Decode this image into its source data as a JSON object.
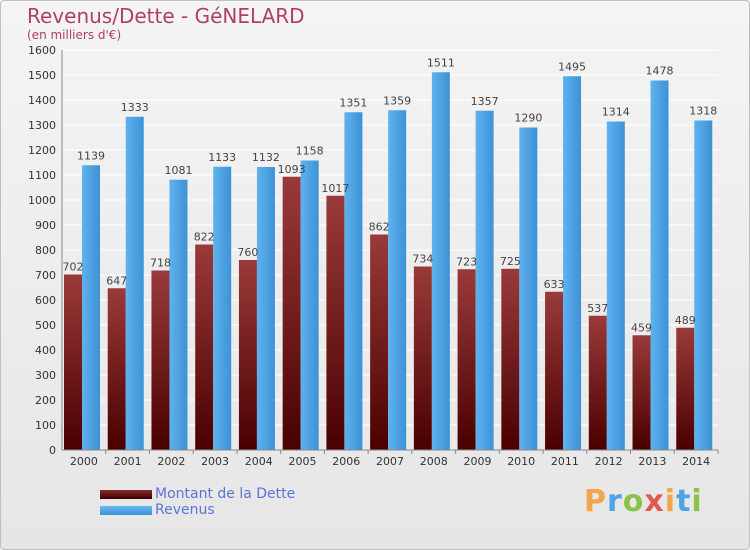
{
  "title": "Revenus/Dette - GéNELARD",
  "subtitle": "(en milliers d'€)",
  "legend": [
    {
      "label": "Montant de la Dette",
      "color": "#6b0a0a"
    },
    {
      "label": "Revenus",
      "color": "#4ea6e6"
    }
  ],
  "logo": "Proxiti",
  "chart_data": {
    "type": "bar",
    "categories": [
      "2000",
      "2001",
      "2002",
      "2003",
      "2004",
      "2005",
      "2006",
      "2007",
      "2008",
      "2009",
      "2010",
      "2011",
      "2012",
      "2013",
      "2014"
    ],
    "series": [
      {
        "name": "Montant de la Dette",
        "color": "#6b0a0a",
        "values": [
          702,
          647,
          718,
          822,
          760,
          1093,
          1017,
          862,
          734,
          723,
          725,
          633,
          537,
          459,
          489
        ]
      },
      {
        "name": "Revenus",
        "color": "#4ea6e6",
        "values": [
          1139,
          1333,
          1081,
          1133,
          1132,
          1158,
          1351,
          1359,
          1511,
          1357,
          1290,
          1495,
          1314,
          1478,
          1318
        ]
      }
    ],
    "ylim": [
      0,
      1600
    ],
    "yticks": [
      0,
      100,
      200,
      300,
      400,
      500,
      600,
      700,
      800,
      900,
      1000,
      1100,
      1200,
      1300,
      1400,
      1500,
      1600
    ],
    "grid": true
  }
}
